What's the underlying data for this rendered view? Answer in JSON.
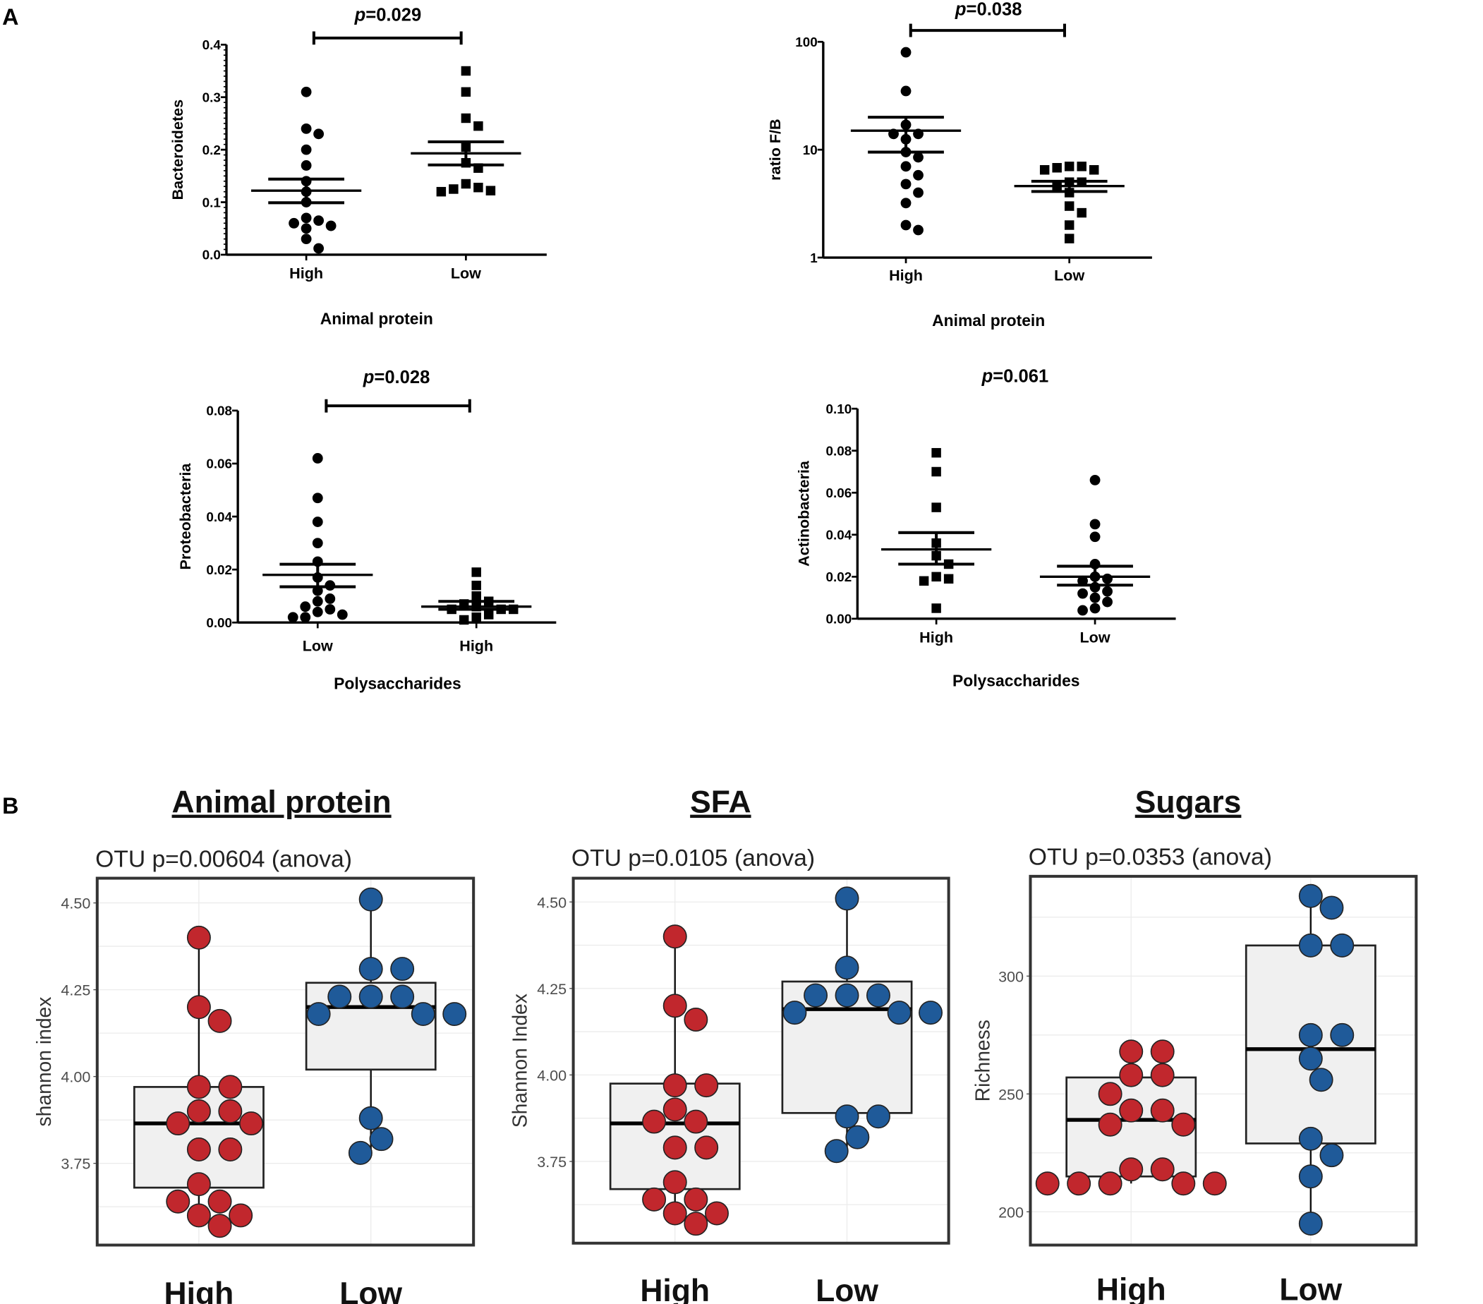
{
  "panel_labels": {
    "a": "A",
    "b": "B"
  },
  "chart_data": [
    {
      "type": "scatter",
      "panel": "A",
      "p_symbol": "p",
      "p_value": "=0.029",
      "bracket": true,
      "ylabel": "Bacteroidetes",
      "xlabel": "Animal protein",
      "categories": [
        "High",
        "Low"
      ],
      "ylim": [
        0,
        0.4
      ],
      "yticks": [
        0,
        0.1,
        0.2,
        0.3,
        0.4
      ],
      "ytick_labels": [
        "0.0",
        "0.1",
        "0.2",
        "0.3",
        "0.4"
      ],
      "series": [
        {
          "name": "High",
          "marker": "circle",
          "values": [
            0.31,
            0.24,
            0.23,
            0.2,
            0.17,
            0.14,
            0.12,
            0.1,
            0.065,
            0.055,
            0.05,
            0.06,
            0.07,
            0.03,
            0.012
          ]
        },
        {
          "name": "Low",
          "marker": "square",
          "values": [
            0.35,
            0.31,
            0.26,
            0.245,
            0.205,
            0.175,
            0.165,
            0.135,
            0.125,
            0.12,
            0.122,
            0.128
          ]
        }
      ],
      "mean_sem": [
        {
          "mean": 0.122,
          "upper": 0.144,
          "lower": 0.099
        },
        {
          "mean": 0.193,
          "upper": 0.215,
          "lower": 0.171
        }
      ]
    },
    {
      "type": "scatter",
      "panel": "A",
      "yscale": "log",
      "p_symbol": "p",
      "p_value": "=0.038",
      "bracket": true,
      "ylabel": "ratio F/B",
      "xlabel": "Animal protein",
      "categories": [
        "High",
        "Low"
      ],
      "ylim": [
        1,
        100
      ],
      "yticks": [
        1,
        10,
        100
      ],
      "ytick_labels": [
        "1",
        "10",
        "100"
      ],
      "series": [
        {
          "name": "High",
          "marker": "circle",
          "values": [
            80,
            35,
            17,
            14,
            14,
            12.5,
            9.5,
            8.5,
            7,
            5.8,
            4.8,
            4,
            3.2,
            2,
            1.8
          ]
        },
        {
          "name": "Low",
          "marker": "square",
          "values": [
            7,
            6.8,
            6.5,
            6.5,
            7,
            5,
            5,
            4.5,
            4,
            3,
            2.6,
            2,
            1.5
          ]
        }
      ],
      "mean_sem": [
        {
          "mean": 15,
          "upper": 20,
          "lower": 9.5
        },
        {
          "mean": 4.6,
          "upper": 5.1,
          "lower": 4.1
        }
      ]
    },
    {
      "type": "scatter",
      "panel": "A",
      "p_symbol": "p",
      "p_value": "=0.028",
      "bracket": true,
      "ylabel": "Proteobacteria",
      "xlabel": "Polysaccharides",
      "categories": [
        "Low",
        "High"
      ],
      "ylim": [
        0,
        0.08
      ],
      "yticks": [
        0,
        0.02,
        0.04,
        0.06,
        0.08
      ],
      "ytick_labels": [
        "0.00",
        "0.02",
        "0.04",
        "0.06",
        "0.08"
      ],
      "series": [
        {
          "name": "Low",
          "marker": "circle",
          "values": [
            0.062,
            0.047,
            0.038,
            0.03,
            0.023,
            0.017,
            0.014,
            0.012,
            0.009,
            0.008,
            0.006,
            0.005,
            0.004,
            0.002,
            0.002,
            0.003
          ]
        },
        {
          "name": "High",
          "marker": "square",
          "values": [
            0.019,
            0.014,
            0.01,
            0.008,
            0.007,
            0.006,
            0.005,
            0.005,
            0.005,
            0.003,
            0.002,
            0.001
          ]
        }
      ],
      "mean_sem": [
        {
          "mean": 0.018,
          "upper": 0.022,
          "lower": 0.0135
        },
        {
          "mean": 0.006,
          "upper": 0.008,
          "lower": 0.005
        }
      ]
    },
    {
      "type": "scatter",
      "panel": "A",
      "p_symbol": "p",
      "p_value": "=0.061",
      "bracket": false,
      "ylabel": "Actinobacteria",
      "xlabel": "Polysaccharides",
      "categories": [
        "High",
        "Low"
      ],
      "ylim": [
        0,
        0.1
      ],
      "yticks": [
        0,
        0.02,
        0.04,
        0.06,
        0.08,
        0.1
      ],
      "ytick_labels": [
        "0.00",
        "0.02",
        "0.04",
        "0.06",
        "0.08",
        "0.10"
      ],
      "series": [
        {
          "name": "High",
          "marker": "square",
          "values": [
            0.079,
            0.07,
            0.053,
            0.036,
            0.03,
            0.026,
            0.02,
            0.019,
            0.018,
            0.005
          ]
        },
        {
          "name": "Low",
          "marker": "circle",
          "values": [
            0.066,
            0.045,
            0.039,
            0.026,
            0.02,
            0.019,
            0.018,
            0.015,
            0.013,
            0.012,
            0.01,
            0.008,
            0.005,
            0.004
          ]
        }
      ],
      "mean_sem": [
        {
          "mean": 0.033,
          "upper": 0.041,
          "lower": 0.026
        },
        {
          "mean": 0.02,
          "upper": 0.025,
          "lower": 0.016
        }
      ]
    },
    {
      "type": "box",
      "panel": "B",
      "title": "Animal protein",
      "subtitle": "OTU p=0.00604 (anova)",
      "ylabel": "shannon index",
      "categories": [
        "High",
        "Low"
      ],
      "yticks": [
        3.75,
        4.0,
        4.25,
        4.5
      ],
      "ytick_labels": [
        "3.75",
        "4.00",
        "4.25",
        "4.50"
      ],
      "series": [
        {
          "name": "High",
          "color": "#c1272d",
          "values": [
            4.4,
            4.2,
            4.16,
            3.97,
            3.97,
            3.9,
            3.9,
            3.865,
            3.865,
            3.79,
            3.79,
            3.69,
            3.64,
            3.64,
            3.6,
            3.6,
            3.57
          ],
          "box": {
            "min": 3.57,
            "q1": 3.68,
            "median": 3.865,
            "q3": 3.97,
            "max": 4.4
          }
        },
        {
          "name": "Low",
          "color": "#1f5a99",
          "values": [
            4.51,
            4.31,
            4.31,
            4.23,
            4.23,
            4.23,
            4.18,
            4.18,
            4.18,
            3.88,
            3.82,
            3.78
          ],
          "box": {
            "min": 3.78,
            "q1": 4.02,
            "median": 4.2,
            "q3": 4.27,
            "max": 4.51
          }
        }
      ]
    },
    {
      "type": "box",
      "panel": "B",
      "title": "SFA",
      "subtitle": "OTU p=0.0105 (anova)",
      "ylabel": "Shannon Index",
      "categories": [
        "High",
        "Low"
      ],
      "yticks": [
        3.75,
        4.0,
        4.25,
        4.5
      ],
      "ytick_labels": [
        "3.75",
        "4.00",
        "4.25",
        "4.50"
      ],
      "series": [
        {
          "name": "High",
          "color": "#c1272d",
          "values": [
            4.4,
            4.2,
            4.16,
            3.97,
            3.97,
            3.9,
            3.865,
            3.865,
            3.79,
            3.79,
            3.69,
            3.64,
            3.64,
            3.6,
            3.6,
            3.57
          ],
          "box": {
            "min": 3.57,
            "q1": 3.67,
            "median": 3.86,
            "q3": 3.975,
            "max": 4.4
          }
        },
        {
          "name": "Low",
          "color": "#1f5a99",
          "values": [
            4.51,
            4.31,
            4.23,
            4.23,
            4.23,
            4.18,
            4.18,
            4.18,
            3.88,
            3.88,
            3.82,
            3.78
          ],
          "box": {
            "min": 3.78,
            "q1": 3.89,
            "median": 4.19,
            "q3": 4.27,
            "max": 4.51
          }
        }
      ]
    },
    {
      "type": "box",
      "panel": "B",
      "title": "Sugars",
      "subtitle": "OTU p=0.0353 (anova)",
      "ylabel": "Richness",
      "categories": [
        "High",
        "Low"
      ],
      "yticks": [
        200,
        250,
        300
      ],
      "ytick_labels": [
        "200",
        "250",
        "300"
      ],
      "series": [
        {
          "name": "High",
          "color": "#c1272d",
          "values": [
            268,
            268,
            258,
            258,
            250,
            243,
            243,
            237,
            237,
            218,
            218,
            212,
            212,
            212,
            212,
            212
          ],
          "box": {
            "min": 212,
            "q1": 215,
            "median": 239,
            "q3": 257,
            "max": 268
          }
        },
        {
          "name": "Low",
          "color": "#1f5a99",
          "values": [
            334,
            329,
            313,
            313,
            275,
            275,
            265,
            256,
            231,
            224,
            215,
            195
          ],
          "box": {
            "min": 195,
            "q1": 229,
            "median": 269,
            "q3": 313,
            "max": 334
          }
        }
      ]
    }
  ]
}
